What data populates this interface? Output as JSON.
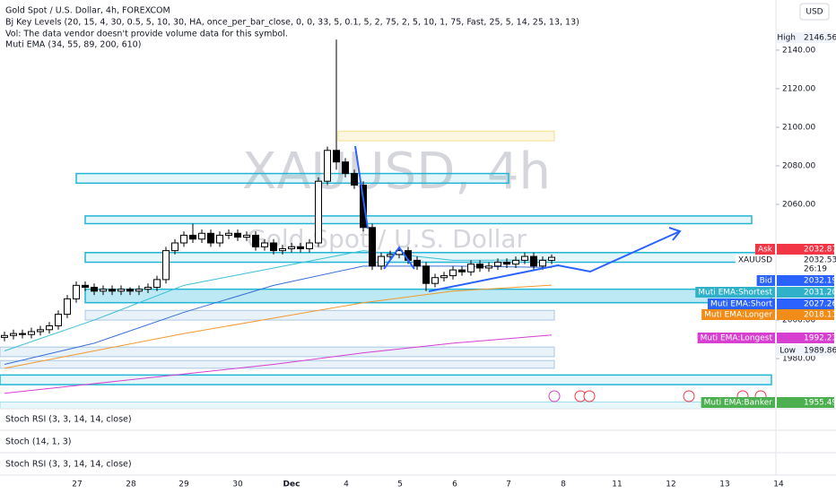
{
  "header": {
    "symbol": "Gold Spot / U.S. Dollar, 4h, FOREXCOM",
    "indicators": [
      "Bj Key Levels (20, 15, 4, 30, 0.5, 5, 10, 30, HA, once_per_bar_close, 0, 0, 33, 5, 0.1, 5, 2, 75, 2, 5, 10, 1, 75, Fast, 25, 5, 14, 25, 13, 13)",
      "Vol: The data vendor doesn't provide volume data for this symbol.",
      "Muti EMA (34, 55, 89, 200, 610)"
    ],
    "currency": "USD",
    "watermark": "XAUUSD, 4h",
    "watermark_sub": "Gold Spot / U.S. Dollar"
  },
  "chart_data": {
    "type": "candlestick",
    "ylim": [
      1954,
      2166
    ],
    "yticks": [
      {
        "value": 2140,
        "label": "2140.00"
      },
      {
        "value": 2120,
        "label": "2120.00"
      },
      {
        "value": 2100,
        "label": "2100.00"
      },
      {
        "value": 2080,
        "label": "2080.00"
      },
      {
        "value": 2060,
        "label": "2060.00"
      },
      {
        "value": 2000,
        "label": "2000.00"
      },
      {
        "value": 1980,
        "label": "1980.00"
      }
    ],
    "categories": [
      "27",
      "28",
      "29",
      "30",
      "Dec",
      "4",
      "5",
      "6",
      "7",
      "8",
      "11",
      "12",
      "13",
      "14"
    ],
    "open": [
      1991,
      1992,
      1993,
      1992.5,
      1994,
      1995,
      1997,
      2003,
      2011,
      2018,
      2017,
      2015,
      2016,
      2015,
      2016,
      2015,
      2016,
      2017,
      2021,
      2036,
      2040,
      2044,
      2042,
      2045,
      2040,
      2044,
      2045,
      2043,
      2044,
      2038,
      2040,
      2036,
      2037,
      2038,
      2037,
      2040,
      2072,
      2088,
      2082,
      2076,
      2070,
      2048,
      2028,
      2033,
      2034,
      2036,
      2031,
      2028,
      2019,
      2022,
      2023,
      2026,
      2025,
      2029,
      2027,
      2028,
      2030,
      2029,
      2031,
      2033,
      2028,
      2031
    ],
    "high": [
      1994,
      1995,
      1995,
      1996,
      1997,
      1999,
      2005,
      2013,
      2020,
      2020,
      2019,
      2018,
      2018,
      2018,
      2017,
      2018,
      2019,
      2023,
      2038,
      2042,
      2046,
      2050,
      2047,
      2047,
      2046,
      2047,
      2047,
      2046,
      2046,
      2042,
      2042,
      2039,
      2040,
      2040,
      2042,
      2074,
      2090,
      2145.5,
      2084,
      2078,
      2072,
      2050,
      2035,
      2036,
      2038,
      2038,
      2033,
      2030,
      2024,
      2025,
      2028,
      2028,
      2031,
      2031,
      2030,
      2032,
      2032,
      2033,
      2035,
      2035,
      2033,
      2034
    ],
    "low": [
      1989,
      1990,
      1990.5,
      1990.5,
      1992,
      1993,
      1995,
      2001,
      2009,
      2015,
      2013,
      2013,
      2013,
      2013,
      2013,
      2013,
      2014,
      2015,
      2019,
      2034,
      2038,
      2040,
      2040,
      2038,
      2038,
      2042,
      2041,
      2041,
      2036,
      2036,
      2034,
      2034,
      2035,
      2035,
      2035,
      2038,
      2070,
      2078,
      2074,
      2068,
      2046,
      2026,
      2026,
      2031,
      2032,
      2029,
      2026,
      2015,
      2017,
      2020,
      2021,
      2023,
      2023,
      2025,
      2025,
      2026,
      2027,
      2027,
      2029,
      2026,
      2026,
      2029
    ],
    "close": [
      1992,
      1993,
      1992.5,
      1994,
      1995,
      1997,
      2003,
      2011,
      2018,
      2017,
      2015,
      2016,
      2015,
      2016,
      2015,
      2016,
      2017,
      2021,
      2036,
      2040,
      2044,
      2042,
      2045,
      2040,
      2044,
      2045,
      2043,
      2044,
      2038,
      2040,
      2036,
      2037,
      2038,
      2037,
      2040,
      2072,
      2088,
      2082,
      2076,
      2070,
      2048,
      2028,
      2033,
      2034,
      2036,
      2031,
      2028,
      2019,
      2022,
      2023,
      2026,
      2025,
      2029,
      2027,
      2028,
      2030,
      2029,
      2031,
      2033,
      2028,
      2031,
      2032.53
    ],
    "ema_x": [
      0,
      10,
      20,
      30,
      40,
      50,
      61
    ],
    "ema": [
      {
        "name": "Muti EMA:Shortest",
        "color": "#3bbfd6",
        "values": [
          1984,
          2000,
          2018,
          2027,
          2036,
          2031,
          2031.2
        ]
      },
      {
        "name": "Muti EMA:Short",
        "color": "#3a6fd8",
        "values": [
          1977,
          1988,
          2004,
          2018,
          2028,
          2028,
          2027.26
        ]
      },
      {
        "name": "Muti EMA:Longer",
        "color": "#f29a2e",
        "values": [
          1975,
          1984,
          1993,
          2001,
          2009,
          2015,
          2018.11
        ]
      },
      {
        "name": "Muti EMA:Longest",
        "color": "#d63fd0",
        "values": [
          1962,
          1967,
          1972,
          1977,
          1983,
          1988,
          1992.23
        ]
      }
    ],
    "zones": [
      {
        "top": 2076,
        "bottom": 2071,
        "color": "#22b5d6"
      },
      {
        "top": 2054,
        "bottom": 2050,
        "color": "#22b5d6"
      },
      {
        "top": 2035,
        "bottom": 2030,
        "color": "#22b5d6"
      },
      {
        "top": 2016,
        "bottom": 2009,
        "color": "#22b5d6"
      },
      {
        "top": 2005,
        "bottom": 2000,
        "color": "#a9c8e6"
      },
      {
        "top": 1986,
        "bottom": 1981,
        "color": "#a9c8e6"
      },
      {
        "top": 1979,
        "bottom": 1975,
        "color": "#a9c8e6"
      },
      {
        "top": 2098,
        "bottom": 2093,
        "color": "#f5df8a"
      },
      {
        "top": 1971.5,
        "bottom": 1966.5,
        "color": "#22b5d6"
      },
      {
        "top": 1957.5,
        "bottom": 1954,
        "color": "#9fe0ea"
      }
    ],
    "price_tags": [
      {
        "name": "High",
        "label": "2146.56",
        "color": "#ffffff"
      },
      {
        "name": "Ask",
        "label": "2032.87",
        "color": "#f23645"
      },
      {
        "name": "XAUUSD",
        "label": "2032.53",
        "color": "#ffffff"
      },
      {
        "name": "Bid",
        "label": "2032.19",
        "color": "#2962ff"
      },
      {
        "name": "Muti EMA:Shortest",
        "label": "2031.20",
        "color": "#2fb2c9"
      },
      {
        "name": "Muti EMA:Short",
        "label": "2027.26",
        "color": "#2962ff"
      },
      {
        "name": "Muti EMA:Longer",
        "label": "2018.11",
        "color": "#f28c18"
      },
      {
        "name": "Muti EMA:Longest",
        "label": "1992.23",
        "color": "#d63fd0"
      },
      {
        "name": "Low",
        "label": "1989.86",
        "color": "#ffffff"
      },
      {
        "name": "Muti EMA:Banker",
        "label": "1955.49",
        "color": "#4caf50"
      }
    ],
    "countdown": "26:19"
  },
  "panes": [
    "Stoch RSI (3, 3, 14, 14, close)",
    "Stoch (14, 1, 3)",
    "Stoch RSI (3, 3, 14, 14, close)"
  ]
}
